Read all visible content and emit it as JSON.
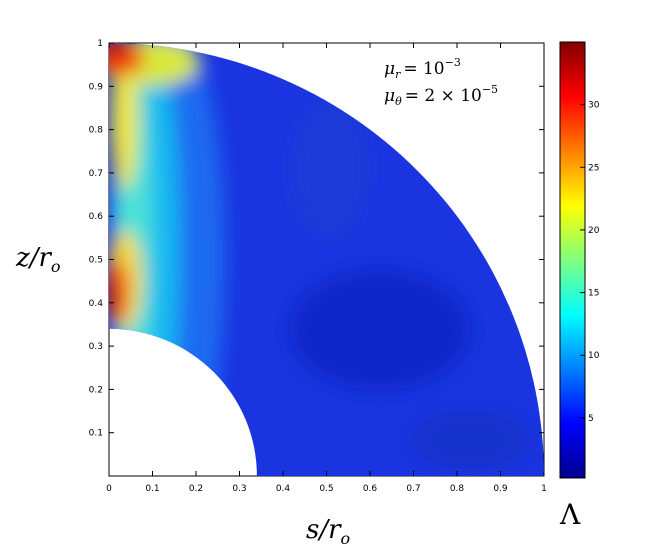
{
  "chart_data": {
    "type": "heatmap",
    "title": "",
    "xlabel": {
      "main": "s/r",
      "sub": "o"
    },
    "ylabel": {
      "main": "z/r",
      "sub": "o"
    },
    "xlim": [
      0,
      1
    ],
    "ylim": [
      0,
      1
    ],
    "x_ticks": [
      "0",
      "0.1",
      "0.2",
      "0.3",
      "0.4",
      "0.5",
      "0.6",
      "0.7",
      "0.8",
      "0.9",
      "1"
    ],
    "y_ticks": [
      "0.1",
      "0.2",
      "0.3",
      "0.4",
      "0.5",
      "0.6",
      "0.7",
      "0.8",
      "0.9",
      "1"
    ],
    "domain": {
      "shape": "quarter spherical shell",
      "inner_radius": 0.34,
      "outer_radius": 1.0
    },
    "colorbar": {
      "label": "Λ",
      "range": [
        0.2,
        35
      ],
      "ticks": [
        "5",
        "10",
        "15",
        "20",
        "25",
        "30"
      ],
      "colormap": "jet"
    },
    "annotations": [
      {
        "symbol": "μ",
        "sub": "r",
        "value": "= 10",
        "exp": "−3"
      },
      {
        "symbol": "μ",
        "sub": "θ",
        "value": "= 2 × 10",
        "exp": "−5"
      }
    ],
    "field_samples": [
      {
        "s": 0.02,
        "z": 0.38,
        "value": 33
      },
      {
        "s": 0.02,
        "z": 0.98,
        "value": 33
      },
      {
        "s": 0.05,
        "z": 0.66,
        "value": 18
      },
      {
        "s": 0.15,
        "z": 0.8,
        "value": 10
      },
      {
        "s": 0.35,
        "z": 0.6,
        "value": 4
      },
      {
        "s": 0.7,
        "z": 0.3,
        "value": 3
      }
    ]
  }
}
